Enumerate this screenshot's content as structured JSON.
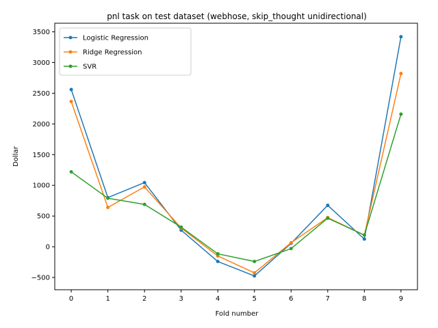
{
  "chart_data": {
    "type": "line",
    "title": "pnl task on test dataset (webhose, skip_thought unidirectional)",
    "xlabel": "Fold number",
    "ylabel": "Dollar",
    "x": [
      0,
      1,
      2,
      3,
      4,
      5,
      6,
      7,
      8,
      9
    ],
    "xlim": [
      -0.45,
      9.45
    ],
    "ylim": [
      -700,
      3640
    ],
    "xticks": [
      0,
      1,
      2,
      3,
      4,
      5,
      6,
      7,
      8,
      9
    ],
    "yticks": [
      -500,
      0,
      500,
      1000,
      1500,
      2000,
      2500,
      3000,
      3500
    ],
    "ytick_labels": [
      "−500",
      "0",
      "500",
      "1000",
      "1500",
      "2000",
      "2500",
      "3000",
      "3500"
    ],
    "grid": false,
    "legend_position": "top-left",
    "series": [
      {
        "name": "Logistic Regression",
        "color": "#1f77b4",
        "marker": "dot",
        "values": [
          2560,
          800,
          1045,
          270,
          -240,
          -475,
          55,
          675,
          125,
          3420
        ]
      },
      {
        "name": "Ridge Regression",
        "color": "#ff7f0e",
        "marker": "dot",
        "values": [
          2365,
          640,
          975,
          305,
          -150,
          -425,
          65,
          475,
          190,
          2820
        ]
      },
      {
        "name": "SVR",
        "color": "#2ca02c",
        "marker": "dot",
        "values": [
          1220,
          790,
          690,
          320,
          -115,
          -240,
          -30,
          465,
          190,
          2160
        ]
      }
    ]
  }
}
